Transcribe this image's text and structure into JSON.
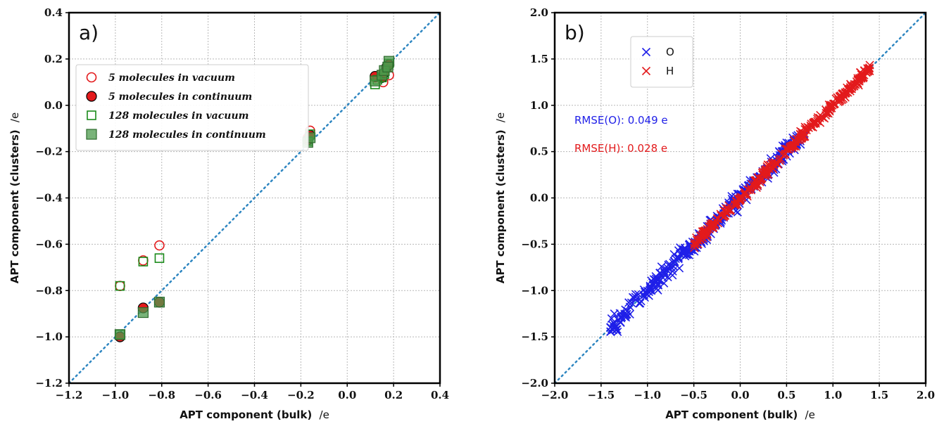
{
  "chart_data": [
    {
      "type": "scatter",
      "panel_label": "a)",
      "xlabel": "APT component (bulk)",
      "xlabel_unit": "/e",
      "ylabel": "APT component (clusters)",
      "ylabel_unit": "/e",
      "xlim": [
        -1.2,
        0.4
      ],
      "ylim": [
        -1.2,
        0.4
      ],
      "xticks": [
        "−1.2",
        "−1.0",
        "−0.8",
        "−0.6",
        "−0.4",
        "−0.2",
        "0.0",
        "0.2",
        "0.4"
      ],
      "yticks": [
        "−1.2",
        "−1.0",
        "−0.8",
        "−0.6",
        "−0.4",
        "−0.2",
        "0.0",
        "0.2",
        "0.4"
      ],
      "tick_values": [
        -1.2,
        -1.0,
        -0.8,
        -0.6,
        -0.4,
        -0.2,
        0.0,
        0.2,
        0.4
      ],
      "grid": true,
      "diagonal": true,
      "legend_position": "upper-left",
      "series": [
        {
          "name": "5 molecules in vacuum",
          "marker": "open-circle",
          "color": "#e31a1c",
          "points": [
            [
              -0.98,
              -0.78
            ],
            [
              -0.88,
              -0.67
            ],
            [
              -0.81,
              -0.605
            ],
            [
              -0.98,
              -1.0
            ],
            [
              -0.17,
              -0.14
            ],
            [
              -0.16,
              -0.11
            ],
            [
              0.12,
              0.12
            ],
            [
              0.14,
              0.13
            ],
            [
              0.155,
              0.1
            ],
            [
              0.16,
              0.14
            ],
            [
              0.18,
              0.13
            ],
            [
              0.17,
              0.16
            ]
          ]
        },
        {
          "name": "5 molecules in continuum",
          "marker": "filled-circle",
          "color": "#e31a1c",
          "points": [
            [
              -0.98,
              -1.0
            ],
            [
              -0.88,
              -0.875
            ],
            [
              -0.81,
              -0.85
            ],
            [
              -0.17,
              -0.15
            ],
            [
              -0.16,
              -0.13
            ],
            [
              0.12,
              0.125
            ],
            [
              0.15,
              0.12
            ],
            [
              0.16,
              0.14
            ],
            [
              0.17,
              0.165
            ],
            [
              0.18,
              0.175
            ]
          ]
        },
        {
          "name": "128 molecules in vacuum",
          "marker": "open-square",
          "color": "#1a8a1a",
          "points": [
            [
              -0.98,
              -0.78
            ],
            [
              -0.88,
              -0.675
            ],
            [
              -0.81,
              -0.66
            ],
            [
              -0.98,
              -0.99
            ],
            [
              -0.17,
              -0.155
            ],
            [
              -0.16,
              -0.125
            ],
            [
              0.12,
              0.09
            ],
            [
              0.13,
              0.11
            ],
            [
              0.15,
              0.12
            ],
            [
              0.16,
              0.135
            ],
            [
              0.18,
              0.18
            ]
          ]
        },
        {
          "name": "128 molecules in continuum",
          "marker": "filled-square",
          "color": "#4c9a4c",
          "points": [
            [
              -0.98,
              -0.99
            ],
            [
              -0.88,
              -0.895
            ],
            [
              -0.81,
              -0.85
            ],
            [
              -0.17,
              -0.16
            ],
            [
              -0.16,
              -0.14
            ],
            [
              0.12,
              0.105
            ],
            [
              0.15,
              0.13
            ],
            [
              0.16,
              0.15
            ],
            [
              0.18,
              0.19
            ],
            [
              0.175,
              0.165
            ]
          ]
        }
      ]
    },
    {
      "type": "scatter",
      "panel_label": "b)",
      "xlabel": "APT component (bulk)",
      "xlabel_unit": "/e",
      "ylabel": "APT component (clusters)",
      "ylabel_unit": "/e",
      "xlim": [
        -2.0,
        2.0
      ],
      "ylim": [
        -2.0,
        2.0
      ],
      "xticks": [
        "−2.0",
        "−1.5",
        "−1.0",
        "−0.5",
        "0.0",
        "0.5",
        "1.0",
        "1.5",
        "2.0"
      ],
      "yticks": [
        "−2.0",
        "−1.5",
        "−1.0",
        "−0.5",
        "0.0",
        "0.5",
        "1.0",
        "1.5",
        "2.0"
      ],
      "tick_values": [
        -2.0,
        -1.5,
        -1.0,
        -0.5,
        0.0,
        0.5,
        1.0,
        1.5,
        2.0
      ],
      "grid": true,
      "diagonal": true,
      "legend_position": "upper-left",
      "annotations": [
        {
          "text": "RMSE(O): 0.049 e",
          "color": "#1f1fe8"
        },
        {
          "text": "RMSE(H): 0.028 e",
          "color": "#e31a1c"
        }
      ],
      "series": [
        {
          "name": "O",
          "marker": "x",
          "color": "#1f1fe8",
          "x_range": [
            -1.4,
            0.7
          ],
          "count": 320,
          "rmse": 0.049
        },
        {
          "name": "H",
          "marker": "x",
          "color": "#e31a1c",
          "x_range": [
            -0.5,
            1.4
          ],
          "count": 320,
          "rmse": 0.028
        }
      ]
    }
  ],
  "colors": {
    "grid": "#b8b8b8",
    "diagonal": "#2e86c1",
    "frame": "#000000"
  }
}
